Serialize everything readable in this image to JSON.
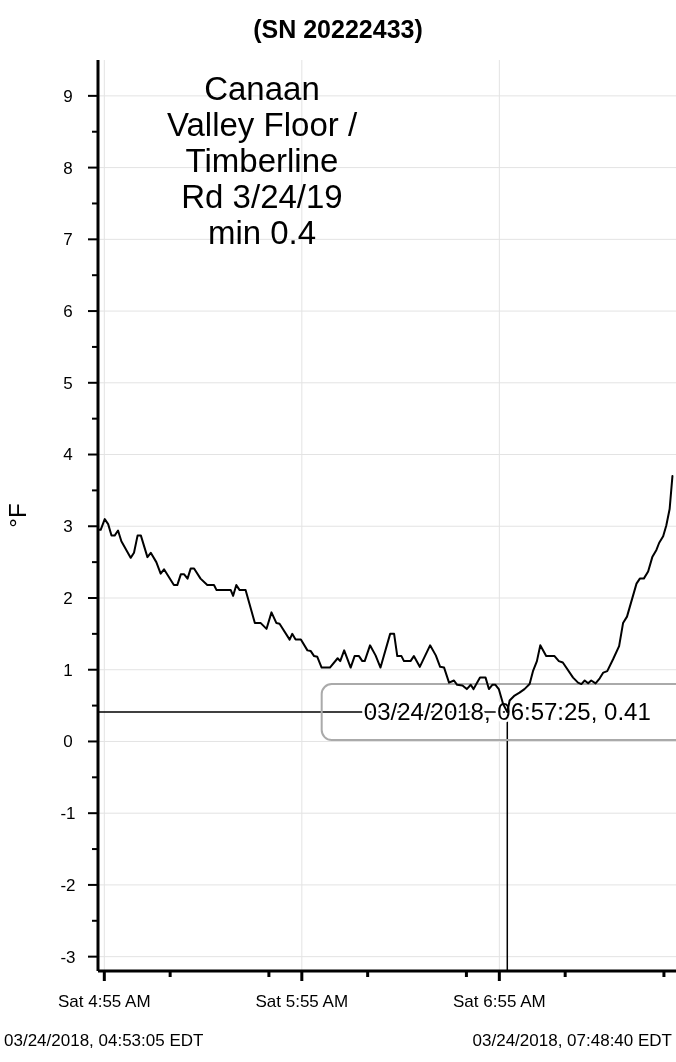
{
  "chart_data": {
    "type": "line",
    "title": "(SN 20222433)",
    "ylabel": "°F",
    "xlim": [
      "2018-03-24T04:53:05",
      "2018-03-24T07:48:40"
    ],
    "ylim": [
      -3.2,
      9.5
    ],
    "xticks": [
      {
        "value": "2018-03-24T04:55",
        "label": "Sat 4:55 AM"
      },
      {
        "value": "2018-03-24T05:15",
        "label": null
      },
      {
        "value": "2018-03-24T05:45",
        "label": null
      },
      {
        "value": "2018-03-24T05:55",
        "label": "Sat 5:55 AM"
      },
      {
        "value": "2018-03-24T06:15",
        "label": null
      },
      {
        "value": "2018-03-24T06:45",
        "label": null
      },
      {
        "value": "2018-03-24T06:55",
        "label": "Sat 6:55 AM"
      },
      {
        "value": "2018-03-24T07:15",
        "label": null
      },
      {
        "value": "2018-03-24T07:45",
        "label": null
      }
    ],
    "yticks": [
      -3,
      {
        "value": -2.5,
        "label": null
      },
      -2,
      {
        "value": -1.5,
        "label": null
      },
      -1,
      {
        "value": -0.5,
        "label": null
      },
      0,
      {
        "value": 0.5,
        "label": null
      },
      1,
      {
        "value": 1.5,
        "label": null
      },
      2,
      {
        "value": 2.5,
        "label": null
      },
      3,
      {
        "value": 3.5,
        "label": null
      },
      4,
      {
        "value": 4.5,
        "label": null
      },
      5,
      {
        "value": 5.5,
        "label": null
      },
      6,
      {
        "value": 6.5,
        "label": null
      },
      7,
      {
        "value": 7.5,
        "label": null
      },
      8,
      {
        "value": 8.5,
        "label": null
      },
      9
    ],
    "grid": true,
    "line_style": "solid",
    "series": [
      {
        "color": "#000000",
        "x": [
          "2018-03-24T04:53:06",
          "2018-03-24T04:53:54",
          "2018-03-24T04:55:08",
          "2018-03-24T04:56:10",
          "2018-03-24T04:57:11",
          "2018-03-24T04:58:08",
          "2018-03-24T04:59:10",
          "2018-03-24T05:00:11",
          "2018-03-24T05:03:00",
          "2018-03-24T05:04:01",
          "2018-03-24T05:05:06",
          "2018-03-24T05:06:07",
          "2018-03-24T05:08:06",
          "2018-03-24T05:09:07",
          "2018-03-24T05:10:48",
          "2018-03-24T05:12:07",
          "2018-03-24T05:13:08",
          "2018-03-24T05:16:08",
          "2018-03-24T05:17:10",
          "2018-03-24T05:18:14",
          "2018-03-24T05:19:16",
          "2018-03-24T05:20:17",
          "2018-03-24T05:21:14",
          "2018-03-24T05:22:16",
          "2018-03-24T05:24:14",
          "2018-03-24T05:26:17",
          "2018-03-24T05:28:19",
          "2018-03-24T05:29:06",
          "2018-03-24T05:33:25",
          "2018-03-24T05:34:08",
          "2018-03-24T05:35:06",
          "2018-03-24T05:36:07",
          "2018-03-24T05:37:55",
          "2018-03-24T05:40:44",
          "2018-03-24T05:42:32",
          "2018-03-24T05:44:17",
          "2018-03-24T05:45:47",
          "2018-03-24T05:47:17",
          "2018-03-24T05:48:14",
          "2018-03-24T05:51:18",
          "2018-03-24T05:52:05",
          "2018-03-24T05:53:06",
          "2018-03-24T05:54:43",
          "2018-03-24T05:56:42",
          "2018-03-24T05:57:43",
          "2018-03-24T05:58:44",
          "2018-03-24T05:59:42",
          "2018-03-24T06:01:01",
          "2018-03-24T06:03:32",
          "2018-03-24T06:05:53",
          "2018-03-24T06:06:40",
          "2018-03-24T06:07:52",
          "2018-03-24T06:09:50",
          "2018-03-24T06:11:02",
          "2018-03-24T06:12:22",
          "2018-03-24T06:13:23",
          "2018-03-24T06:14:06",
          "2018-03-24T06:15:43",
          "2018-03-24T06:17:24",
          "2018-03-24T06:18:54",
          "2018-03-24T06:21:50",
          "2018-03-24T06:23:02",
          "2018-03-24T06:24:00",
          "2018-03-24T06:25:16",
          "2018-03-24T06:26:02",
          "2018-03-24T06:28:01",
          "2018-03-24T06:29:02",
          "2018-03-24T06:30:50",
          "2018-03-24T06:33:58",
          "2018-03-24T06:35:42",
          "2018-03-24T06:37:01",
          "2018-03-24T06:38:13",
          "2018-03-24T06:39:43",
          "2018-03-24T06:41:13",
          "2018-03-24T06:42:11",
          "2018-03-24T06:43:48",
          "2018-03-24T06:45:07",
          "2018-03-24T06:46:19",
          "2018-03-24T06:47:10",
          "2018-03-24T06:49:08",
          "2018-03-24T06:50:49",
          "2018-03-24T06:51:50",
          "2018-03-24T06:52:52",
          "2018-03-24T06:53:49",
          "2018-03-24T06:54:50",
          "2018-03-24T06:56:10",
          "2018-03-24T06:57:25",
          "2018-03-24T06:58:08",
          "2018-03-24T06:59:38",
          "2018-03-24T07:01:08",
          "2018-03-24T07:02:38",
          "2018-03-24T07:04:12",
          "2018-03-24T07:05:13",
          "2018-03-24T07:06:25",
          "2018-03-24T07:07:26",
          "2018-03-24T07:09:14",
          "2018-03-24T07:11:46",
          "2018-03-24T07:13:05",
          "2018-03-24T07:14:17",
          "2018-03-24T07:17:24",
          "2018-03-24T07:18:54",
          "2018-03-24T07:19:55",
          "2018-03-24T07:20:56",
          "2018-03-24T07:21:58",
          "2018-03-24T07:22:55",
          "2018-03-24T07:24:14",
          "2018-03-24T07:25:30",
          "2018-03-24T07:26:35",
          "2018-03-24T07:27:47",
          "2018-03-24T07:29:35",
          "2018-03-24T07:31:23",
          "2018-03-24T07:32:35",
          "2018-03-24T07:33:47",
          "2018-03-24T07:36:40",
          "2018-03-24T07:37:41",
          "2018-03-24T07:38:53",
          "2018-03-24T07:40:12",
          "2018-03-24T07:41:28",
          "2018-03-24T07:42:43",
          "2018-03-24T07:43:34",
          "2018-03-24T07:44:46",
          "2018-03-24T07:45:43",
          "2018-03-24T07:46:44",
          "2018-03-24T07:47:35"
        ],
        "values": [
          2.95,
          2.95,
          3.1,
          3.03,
          2.87,
          2.87,
          2.94,
          2.79,
          2.56,
          2.63,
          2.87,
          2.87,
          2.57,
          2.63,
          2.5,
          2.34,
          2.4,
          2.18,
          2.18,
          2.33,
          2.33,
          2.27,
          2.41,
          2.41,
          2.27,
          2.18,
          2.18,
          2.11,
          2.11,
          2.03,
          2.18,
          2.11,
          2.11,
          1.65,
          1.65,
          1.57,
          1.8,
          1.65,
          1.64,
          1.42,
          1.5,
          1.42,
          1.42,
          1.27,
          1.26,
          1.19,
          1.18,
          1.03,
          1.03,
          1.16,
          1.12,
          1.27,
          1.03,
          1.19,
          1.19,
          1.12,
          1.12,
          1.34,
          1.2,
          1.03,
          1.5,
          1.5,
          1.19,
          1.19,
          1.12,
          1.12,
          1.19,
          1.04,
          1.34,
          1.2,
          1.04,
          1.03,
          0.82,
          0.85,
          0.79,
          0.78,
          0.73,
          0.79,
          0.73,
          0.89,
          0.89,
          0.73,
          0.79,
          0.79,
          0.73,
          0.52,
          0.41,
          0.57,
          0.64,
          0.68,
          0.73,
          0.8,
          0.98,
          1.12,
          1.34,
          1.19,
          1.19,
          1.12,
          1.1,
          0.89,
          0.82,
          0.8,
          0.85,
          0.81,
          0.85,
          0.81,
          0.88,
          0.96,
          0.98,
          1.15,
          1.33,
          1.65,
          1.74,
          2.2,
          2.27,
          2.27,
          2.37,
          2.57,
          2.67,
          2.77,
          2.86,
          3.01,
          3.24,
          3.7
        ]
      }
    ],
    "ref_lines": [
      {
        "axis": "y",
        "value": 0.41,
        "color": "#000000"
      },
      {
        "axis": "x",
        "value": "2018-03-24T06:57:25",
        "color": "#000000"
      }
    ],
    "annotations": [
      "Canaan\nValley Floor /\nTimberline\nRd 3/24/19\nmin 0.4",
      {
        "text": "03/24/2018, 06:57:25, 0.41",
        "x": "2018-03-24T06:57:25",
        "y": 0.41
      },
      "03/24/2018, 04:53:05 EDT",
      "03/24/2018, 07:48:40 EDT"
    ]
  }
}
